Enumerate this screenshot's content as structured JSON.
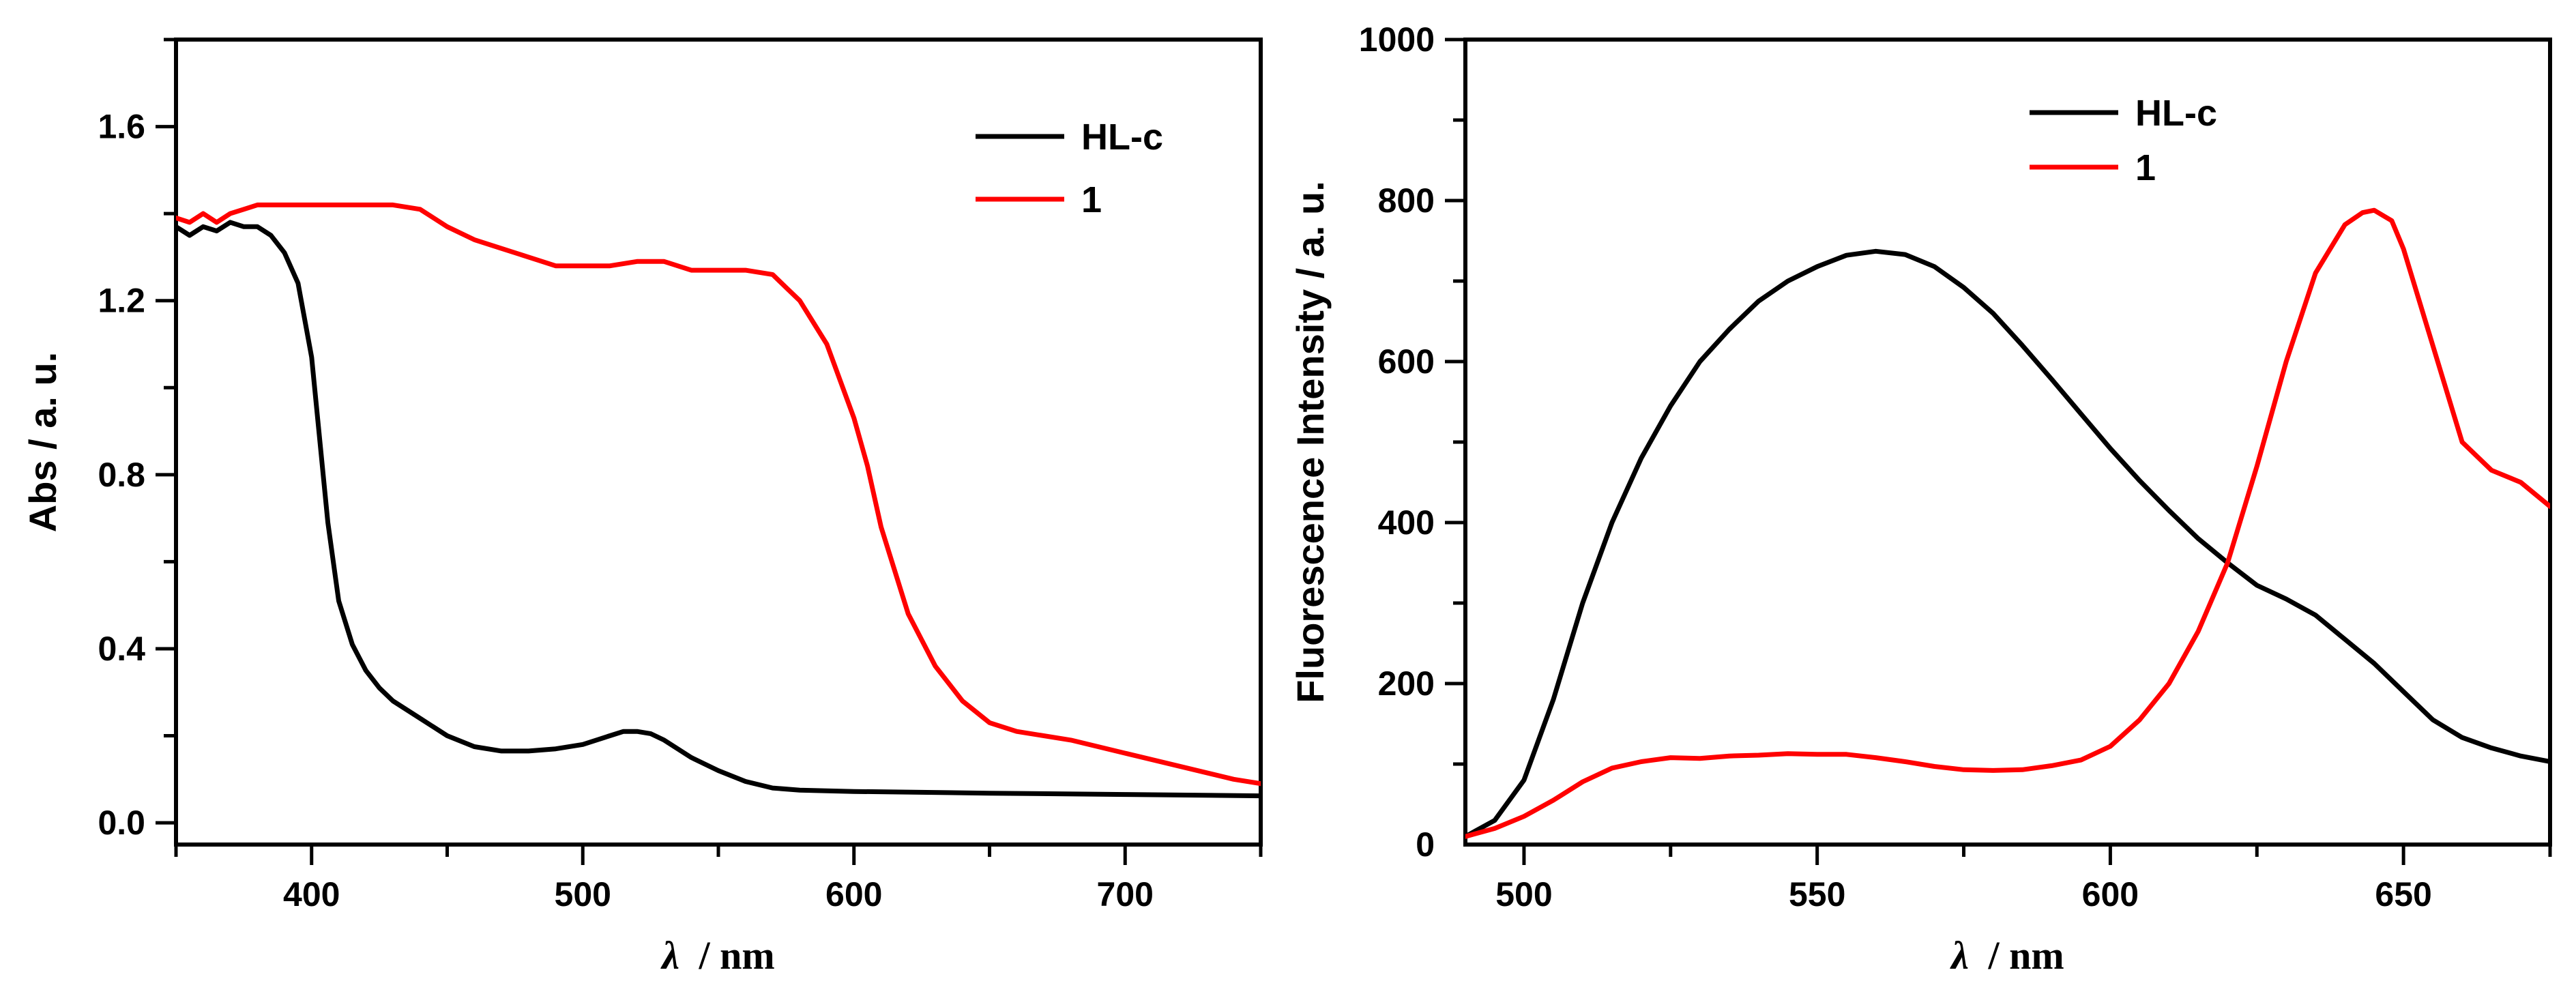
{
  "chart_data": [
    {
      "type": "line",
      "title": "",
      "xlabel_symbol": "λ",
      "xlabel_unit": "/ nm",
      "xlabel": "λ / nm",
      "ylabel": "Abs / a. u.",
      "xlim": [
        350,
        750
      ],
      "ylim": [
        -0.05,
        1.8
      ],
      "xticks": [
        400,
        500,
        600,
        700
      ],
      "xtick_labels": [
        "400",
        "500",
        "600",
        "700"
      ],
      "yticks": [
        0.0,
        0.4,
        0.8,
        1.2,
        1.6
      ],
      "ytick_labels": [
        "0.0",
        "0.4",
        "0.8",
        "1.2",
        "1.6"
      ],
      "legend_position": "top-right",
      "series": [
        {
          "name": "HL-c",
          "color": "#000000",
          "x": [
            350,
            355,
            360,
            365,
            370,
            375,
            380,
            385,
            390,
            395,
            400,
            403,
            406,
            410,
            415,
            420,
            425,
            430,
            440,
            450,
            460,
            470,
            480,
            490,
            500,
            505,
            510,
            515,
            520,
            525,
            530,
            540,
            550,
            560,
            570,
            580,
            600,
            650,
            700,
            750
          ],
          "values": [
            1.37,
            1.35,
            1.37,
            1.36,
            1.38,
            1.37,
            1.37,
            1.35,
            1.31,
            1.24,
            1.07,
            0.88,
            0.69,
            0.51,
            0.41,
            0.35,
            0.31,
            0.28,
            0.24,
            0.2,
            0.175,
            0.165,
            0.165,
            0.17,
            0.18,
            0.19,
            0.2,
            0.21,
            0.21,
            0.205,
            0.19,
            0.15,
            0.12,
            0.095,
            0.08,
            0.075,
            0.072,
            0.068,
            0.065,
            0.062
          ]
        },
        {
          "name": "1",
          "color": "#ff0000",
          "x": [
            350,
            355,
            360,
            365,
            370,
            375,
            380,
            390,
            400,
            410,
            420,
            430,
            440,
            450,
            460,
            470,
            480,
            490,
            500,
            510,
            520,
            530,
            540,
            550,
            560,
            570,
            575,
            580,
            590,
            600,
            605,
            610,
            620,
            630,
            640,
            650,
            660,
            680,
            700,
            720,
            740,
            750
          ],
          "values": [
            1.39,
            1.38,
            1.4,
            1.38,
            1.4,
            1.41,
            1.42,
            1.42,
            1.42,
            1.42,
            1.42,
            1.42,
            1.41,
            1.37,
            1.34,
            1.32,
            1.3,
            1.28,
            1.28,
            1.28,
            1.29,
            1.29,
            1.27,
            1.27,
            1.27,
            1.26,
            1.23,
            1.2,
            1.1,
            0.93,
            0.82,
            0.68,
            0.48,
            0.36,
            0.28,
            0.23,
            0.21,
            0.19,
            0.16,
            0.13,
            0.1,
            0.09
          ]
        }
      ]
    },
    {
      "type": "line",
      "title": "",
      "xlabel_symbol": "λ",
      "xlabel_unit": "/ nm",
      "xlabel": "λ / nm",
      "ylabel": "Fluorescence Intensity / a. u.",
      "xlim": [
        490,
        675
      ],
      "ylim": [
        0,
        1000
      ],
      "xticks": [
        500,
        550,
        600,
        650
      ],
      "xtick_labels": [
        "500",
        "550",
        "600",
        "650"
      ],
      "yticks": [
        0,
        200,
        400,
        600,
        800,
        1000
      ],
      "ytick_labels": [
        "0",
        "200",
        "400",
        "600",
        "800",
        "1000"
      ],
      "legend_position": "top-right",
      "series": [
        {
          "name": "HL-c",
          "color": "#000000",
          "x": [
            490,
            495,
            500,
            505,
            510,
            515,
            520,
            525,
            530,
            535,
            540,
            545,
            550,
            555,
            560,
            565,
            570,
            575,
            580,
            585,
            590,
            595,
            600,
            605,
            610,
            615,
            620,
            625,
            630,
            635,
            640,
            645,
            650,
            655,
            660,
            665,
            670,
            675
          ],
          "values": [
            10,
            30,
            80,
            180,
            300,
            400,
            480,
            545,
            600,
            640,
            675,
            700,
            718,
            732,
            737,
            733,
            718,
            692,
            660,
            620,
            578,
            535,
            492,
            452,
            415,
            380,
            350,
            322,
            305,
            285,
            255,
            225,
            190,
            155,
            133,
            120,
            110,
            103
          ]
        },
        {
          "name": "1",
          "color": "#ff0000",
          "x": [
            490,
            495,
            500,
            505,
            510,
            515,
            520,
            525,
            530,
            535,
            540,
            545,
            550,
            555,
            560,
            565,
            570,
            575,
            580,
            585,
            590,
            595,
            600,
            605,
            610,
            615,
            620,
            625,
            630,
            635,
            640,
            643,
            645,
            648,
            650,
            655,
            660,
            665,
            670,
            675
          ],
          "values": [
            10,
            20,
            35,
            55,
            78,
            95,
            103,
            108,
            107,
            110,
            111,
            113,
            112,
            112,
            108,
            103,
            97,
            93,
            92,
            93,
            98,
            105,
            122,
            155,
            200,
            265,
            350,
            470,
            600,
            710,
            770,
            785,
            788,
            775,
            740,
            620,
            500,
            465,
            450,
            420
          ]
        }
      ]
    }
  ]
}
